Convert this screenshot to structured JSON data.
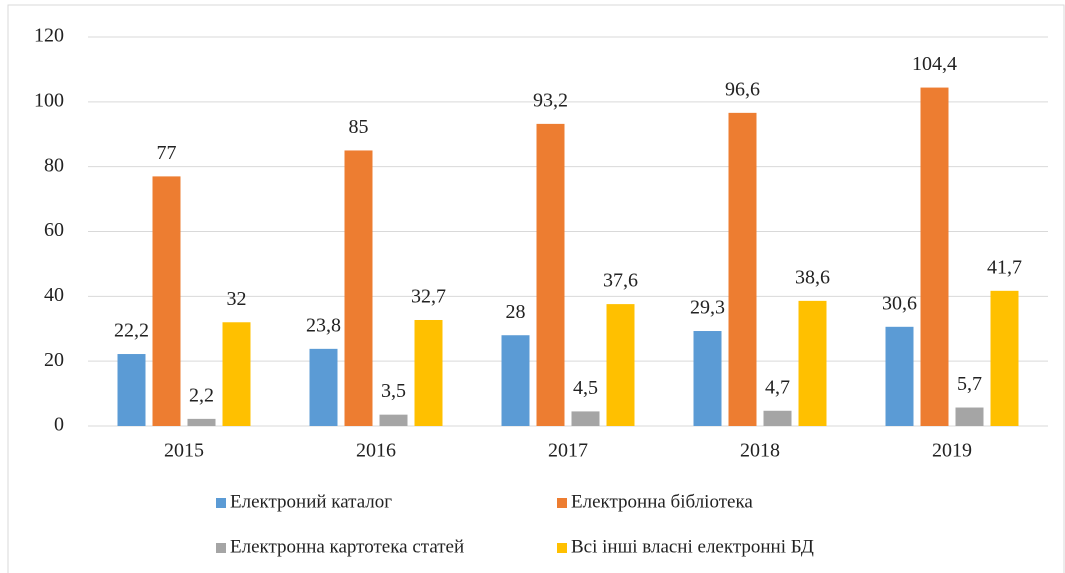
{
  "chart_data": {
    "type": "bar",
    "categories": [
      "2015",
      "2016",
      "2017",
      "2018",
      "2019"
    ],
    "series": [
      {
        "name": "Електроний каталог",
        "color": "#5b9bd5",
        "values": [
          22.2,
          23.8,
          28,
          29.3,
          30.6
        ],
        "value_labels": [
          "22,2",
          "23,8",
          "28",
          "29,3",
          "30,6"
        ]
      },
      {
        "name": "Електронна бібліотека",
        "color": "#ed7d31",
        "values": [
          77,
          85,
          93.2,
          96.6,
          104.4
        ],
        "value_labels": [
          "77",
          "85",
          "93,2",
          "96,6",
          "104,4"
        ]
      },
      {
        "name": "Електронна картотека статей",
        "color": "#a5a5a5",
        "values": [
          2.2,
          3.5,
          4.5,
          4.7,
          5.7
        ],
        "value_labels": [
          "2,2",
          "3,5",
          "4,5",
          "4,7",
          "5,7"
        ]
      },
      {
        "name": "Всі інші власні електронні БД",
        "color": "#ffc000",
        "values": [
          32,
          32.7,
          37.6,
          38.6,
          41.7
        ],
        "value_labels": [
          "32",
          "32,7",
          "37,6",
          "38,6",
          "41,7"
        ]
      }
    ],
    "ylim": [
      0,
      120
    ],
    "yticks": [
      0,
      20,
      40,
      60,
      80,
      100,
      120
    ],
    "grid": true,
    "legend": "bottom"
  }
}
